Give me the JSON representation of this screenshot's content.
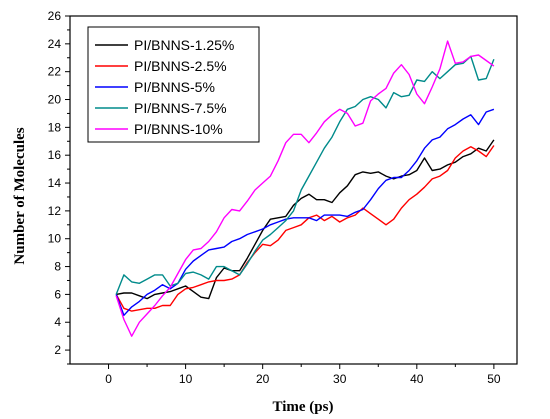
{
  "chart_data": {
    "type": "line",
    "title": "",
    "xlabel": "Time (ps)",
    "ylabel": "Number of Molecules",
    "xlim": [
      -5,
      53
    ],
    "ylim": [
      1,
      26
    ],
    "xticks": [
      0,
      10,
      20,
      30,
      40,
      50
    ],
    "yticks": [
      2,
      4,
      6,
      8,
      10,
      12,
      14,
      16,
      18,
      20,
      22,
      24,
      26
    ],
    "legend_position": "top-left",
    "grid": false,
    "x": [
      1,
      2,
      3,
      4,
      5,
      6,
      7,
      8,
      9,
      10,
      11,
      12,
      13,
      14,
      15,
      16,
      17,
      18,
      19,
      20,
      21,
      22,
      23,
      24,
      25,
      26,
      27,
      28,
      29,
      30,
      31,
      32,
      33,
      34,
      35,
      36,
      37,
      38,
      39,
      40,
      41,
      42,
      43,
      44,
      45,
      46,
      47,
      48,
      49,
      50
    ],
    "series": [
      {
        "name": "PI/BNNS-1.25%",
        "color": "#000000",
        "values": [
          6.0,
          6.1,
          6.1,
          5.9,
          5.7,
          6.0,
          6.1,
          6.2,
          6.4,
          6.6,
          6.2,
          5.8,
          5.7,
          7.2,
          7.9,
          7.7,
          7.7,
          8.6,
          9.6,
          10.6,
          11.4,
          11.5,
          11.6,
          12.4,
          12.9,
          13.2,
          12.8,
          12.8,
          12.6,
          13.3,
          13.8,
          14.6,
          14.8,
          14.7,
          14.8,
          14.5,
          14.3,
          14.5,
          14.6,
          14.9,
          15.8,
          14.9,
          15.0,
          15.3,
          15.5,
          15.9,
          16.1,
          16.5,
          16.3,
          17.1
        ]
      },
      {
        "name": "PI/BNNS-2.5%",
        "color": "#ff0000",
        "values": [
          6.0,
          5.0,
          4.8,
          4.9,
          5.0,
          5.0,
          5.2,
          5.2,
          6.0,
          6.4,
          6.5,
          6.7,
          6.9,
          7.0,
          7.0,
          7.1,
          7.4,
          8.3,
          9.0,
          9.6,
          9.5,
          9.9,
          10.6,
          10.8,
          11.0,
          11.5,
          11.7,
          11.3,
          11.6,
          11.2,
          11.5,
          11.7,
          12.2,
          11.8,
          11.4,
          11.0,
          11.4,
          12.2,
          12.8,
          13.2,
          13.7,
          14.3,
          14.5,
          14.9,
          15.8,
          16.3,
          16.6,
          16.3,
          15.9,
          16.7
        ]
      },
      {
        "name": "PI/BNNS-5%",
        "color": "#0000ff",
        "values": [
          6.0,
          4.5,
          5.1,
          5.5,
          6.0,
          6.3,
          6.7,
          6.4,
          6.8,
          7.8,
          8.4,
          8.8,
          9.2,
          9.3,
          9.4,
          9.8,
          10.0,
          10.3,
          10.5,
          10.7,
          11.0,
          11.2,
          11.4,
          11.5,
          11.5,
          11.5,
          11.3,
          11.7,
          11.7,
          11.7,
          11.6,
          11.9,
          12.1,
          12.8,
          13.6,
          14.2,
          14.4,
          14.4,
          14.9,
          15.6,
          16.5,
          17.1,
          17.3,
          17.9,
          18.2,
          18.6,
          18.9,
          18.2,
          19.1,
          19.3
        ]
      },
      {
        "name": "PI/BNNS-7.5%",
        "color": "#008b8b",
        "values": [
          6.0,
          7.4,
          6.9,
          6.8,
          7.1,
          7.4,
          7.4,
          6.6,
          6.8,
          7.5,
          7.6,
          7.4,
          7.1,
          8.0,
          8.0,
          7.7,
          7.4,
          8.2,
          9.1,
          9.9,
          10.3,
          10.8,
          11.3,
          12.0,
          13.5,
          14.5,
          15.5,
          16.5,
          17.3,
          18.4,
          19.3,
          19.5,
          20.0,
          20.2,
          20.0,
          19.4,
          20.5,
          20.2,
          20.3,
          21.4,
          21.3,
          22.0,
          21.5,
          22.0,
          22.5,
          22.6,
          23.1,
          21.4,
          21.5,
          22.9
        ]
      },
      {
        "name": "PI/BNNS-10%",
        "color": "#ff00ff",
        "values": [
          5.9,
          4.2,
          3.0,
          4.0,
          4.6,
          5.2,
          5.9,
          6.5,
          7.5,
          8.5,
          9.2,
          9.3,
          9.8,
          10.5,
          11.5,
          12.1,
          12.0,
          12.7,
          13.5,
          14.0,
          14.5,
          15.6,
          16.9,
          17.5,
          17.5,
          16.9,
          17.6,
          18.4,
          18.9,
          19.3,
          19.0,
          18.1,
          18.3,
          19.9,
          20.4,
          20.8,
          21.9,
          22.5,
          21.8,
          20.4,
          19.7,
          20.9,
          22.2,
          24.2,
          22.6,
          22.7,
          23.1,
          23.2,
          22.8,
          22.4
        ]
      }
    ]
  }
}
